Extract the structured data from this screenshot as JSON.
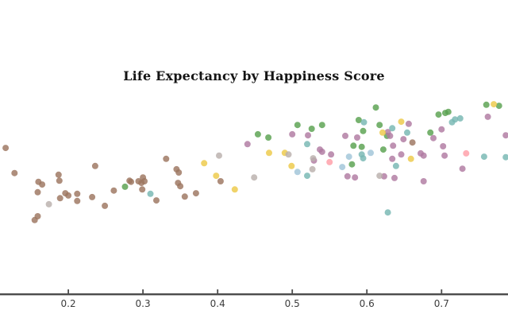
{
  "chart": {
    "title": "Life Expectancy by Happiness Score"
  },
  "chart_data": {
    "type": "scatter",
    "title": "Life Expectancy by Happiness Score",
    "xlabel": "",
    "ylabel": "",
    "legend": "none",
    "grid": false,
    "x_axis": {
      "tick_values": [
        0.2,
        0.3,
        0.4,
        0.5,
        0.6,
        0.7
      ],
      "tick_labels": [
        "0.2",
        "0.3",
        "0.4",
        "0.5",
        "0.6",
        "0.7"
      ],
      "range": [
        0.1085,
        0.789
      ]
    },
    "y_axis": {
      "range": [
        50,
        90
      ],
      "visible": false
    },
    "point_style": {
      "radius": 4,
      "opacity": 0.82
    },
    "axis_color": "#4c4c4c",
    "series": [
      {
        "name": "brown",
        "color": "#9c755f",
        "points": [
          [
            0.116,
            76.9
          ],
          [
            0.128,
            72.3
          ],
          [
            0.155,
            63.7
          ],
          [
            0.159,
            64.4
          ],
          [
            0.159,
            68.8
          ],
          [
            0.16,
            70.7
          ],
          [
            0.165,
            70.2
          ],
          [
            0.187,
            72.0
          ],
          [
            0.188,
            70.9
          ],
          [
            0.189,
            67.7
          ],
          [
            0.196,
            68.6
          ],
          [
            0.2,
            68.2
          ],
          [
            0.212,
            68.5
          ],
          [
            0.212,
            67.2
          ],
          [
            0.232,
            67.9
          ],
          [
            0.236,
            73.6
          ],
          [
            0.249,
            66.3
          ],
          [
            0.261,
            69.1
          ],
          [
            0.282,
            70.9
          ],
          [
            0.284,
            70.7
          ],
          [
            0.294,
            70.8
          ],
          [
            0.298,
            70.5
          ],
          [
            0.299,
            69.3
          ],
          [
            0.3,
            71.5
          ],
          [
            0.302,
            70.8
          ],
          [
            0.318,
            67.3
          ],
          [
            0.331,
            74.9
          ],
          [
            0.345,
            73.0
          ],
          [
            0.347,
            70.5
          ],
          [
            0.348,
            72.4
          ],
          [
            0.35,
            69.9
          ],
          [
            0.356,
            68.0
          ],
          [
            0.371,
            68.6
          ],
          [
            0.404,
            70.8
          ],
          [
            0.661,
            77.9
          ]
        ]
      },
      {
        "name": "green",
        "color": "#59a14f",
        "points": [
          [
            0.276,
            69.8
          ],
          [
            0.454,
            79.4
          ],
          [
            0.468,
            78.8
          ],
          [
            0.507,
            81.1
          ],
          [
            0.526,
            80.4
          ],
          [
            0.54,
            81.1
          ],
          [
            0.58,
            73.9
          ],
          [
            0.582,
            77.3
          ],
          [
            0.589,
            82.0
          ],
          [
            0.593,
            77.1
          ],
          [
            0.595,
            80.0
          ],
          [
            0.612,
            84.3
          ],
          [
            0.617,
            81.1
          ],
          [
            0.622,
            76.6
          ],
          [
            0.627,
            79.1
          ],
          [
            0.685,
            79.7
          ],
          [
            0.696,
            83.0
          ],
          [
            0.705,
            83.3
          ],
          [
            0.709,
            83.5
          ],
          [
            0.76,
            84.8
          ],
          [
            0.777,
            84.6
          ]
        ]
      },
      {
        "name": "purple",
        "color": "#b07aa1",
        "points": [
          [
            0.44,
            77.6
          ],
          [
            0.5,
            79.4
          ],
          [
            0.521,
            79.2
          ],
          [
            0.529,
            74.6
          ],
          [
            0.537,
            76.6
          ],
          [
            0.54,
            76.2
          ],
          [
            0.552,
            75.7
          ],
          [
            0.571,
            79.1
          ],
          [
            0.574,
            71.7
          ],
          [
            0.584,
            71.5
          ],
          [
            0.587,
            78.8
          ],
          [
            0.623,
            71.7
          ],
          [
            0.628,
            79.8
          ],
          [
            0.631,
            79.1
          ],
          [
            0.634,
            74.9
          ],
          [
            0.635,
            77.3
          ],
          [
            0.637,
            71.4
          ],
          [
            0.646,
            75.7
          ],
          [
            0.649,
            78.5
          ],
          [
            0.656,
            81.3
          ],
          [
            0.672,
            75.9
          ],
          [
            0.676,
            75.5
          ],
          [
            0.676,
            70.8
          ],
          [
            0.689,
            78.7
          ],
          [
            0.7,
            80.3
          ],
          [
            0.702,
            77.2
          ],
          [
            0.704,
            75.5
          ],
          [
            0.728,
            73.1
          ],
          [
            0.762,
            82.6
          ],
          [
            0.786,
            79.2
          ]
        ]
      },
      {
        "name": "teal",
        "color": "#76b7b2",
        "points": [
          [
            0.31,
            68.5
          ],
          [
            0.52,
            77.6
          ],
          [
            0.52,
            71.8
          ],
          [
            0.593,
            75.7
          ],
          [
            0.595,
            75.0
          ],
          [
            0.596,
            81.6
          ],
          [
            0.628,
            65.1
          ],
          [
            0.634,
            80.5
          ],
          [
            0.639,
            73.6
          ],
          [
            0.654,
            79.7
          ],
          [
            0.714,
            81.6
          ],
          [
            0.718,
            82.1
          ],
          [
            0.725,
            82.3
          ],
          [
            0.757,
            75.3
          ],
          [
            0.786,
            75.2
          ]
        ]
      },
      {
        "name": "lightblue",
        "color": "#a0c4d8",
        "points": [
          [
            0.507,
            72.5
          ],
          [
            0.567,
            73.4
          ],
          [
            0.576,
            75.3
          ],
          [
            0.605,
            76.0
          ]
        ]
      },
      {
        "name": "yellow",
        "color": "#edc948",
        "points": [
          [
            0.382,
            74.1
          ],
          [
            0.398,
            71.8
          ],
          [
            0.423,
            69.3
          ],
          [
            0.469,
            76.0
          ],
          [
            0.49,
            76.0
          ],
          [
            0.499,
            73.6
          ],
          [
            0.621,
            79.7
          ],
          [
            0.646,
            81.7
          ],
          [
            0.659,
            74.9
          ],
          [
            0.77,
            84.9
          ]
        ]
      },
      {
        "name": "gray",
        "color": "#bab0ac",
        "points": [
          [
            0.174,
            66.6
          ],
          [
            0.402,
            75.5
          ],
          [
            0.449,
            71.5
          ],
          [
            0.495,
            75.7
          ],
          [
            0.527,
            73.0
          ],
          [
            0.528,
            75.0
          ],
          [
            0.617,
            71.8
          ]
        ]
      },
      {
        "name": "pink",
        "color": "#ff9da7",
        "points": [
          [
            0.55,
            74.3
          ],
          [
            0.733,
            75.9
          ]
        ]
      }
    ]
  }
}
